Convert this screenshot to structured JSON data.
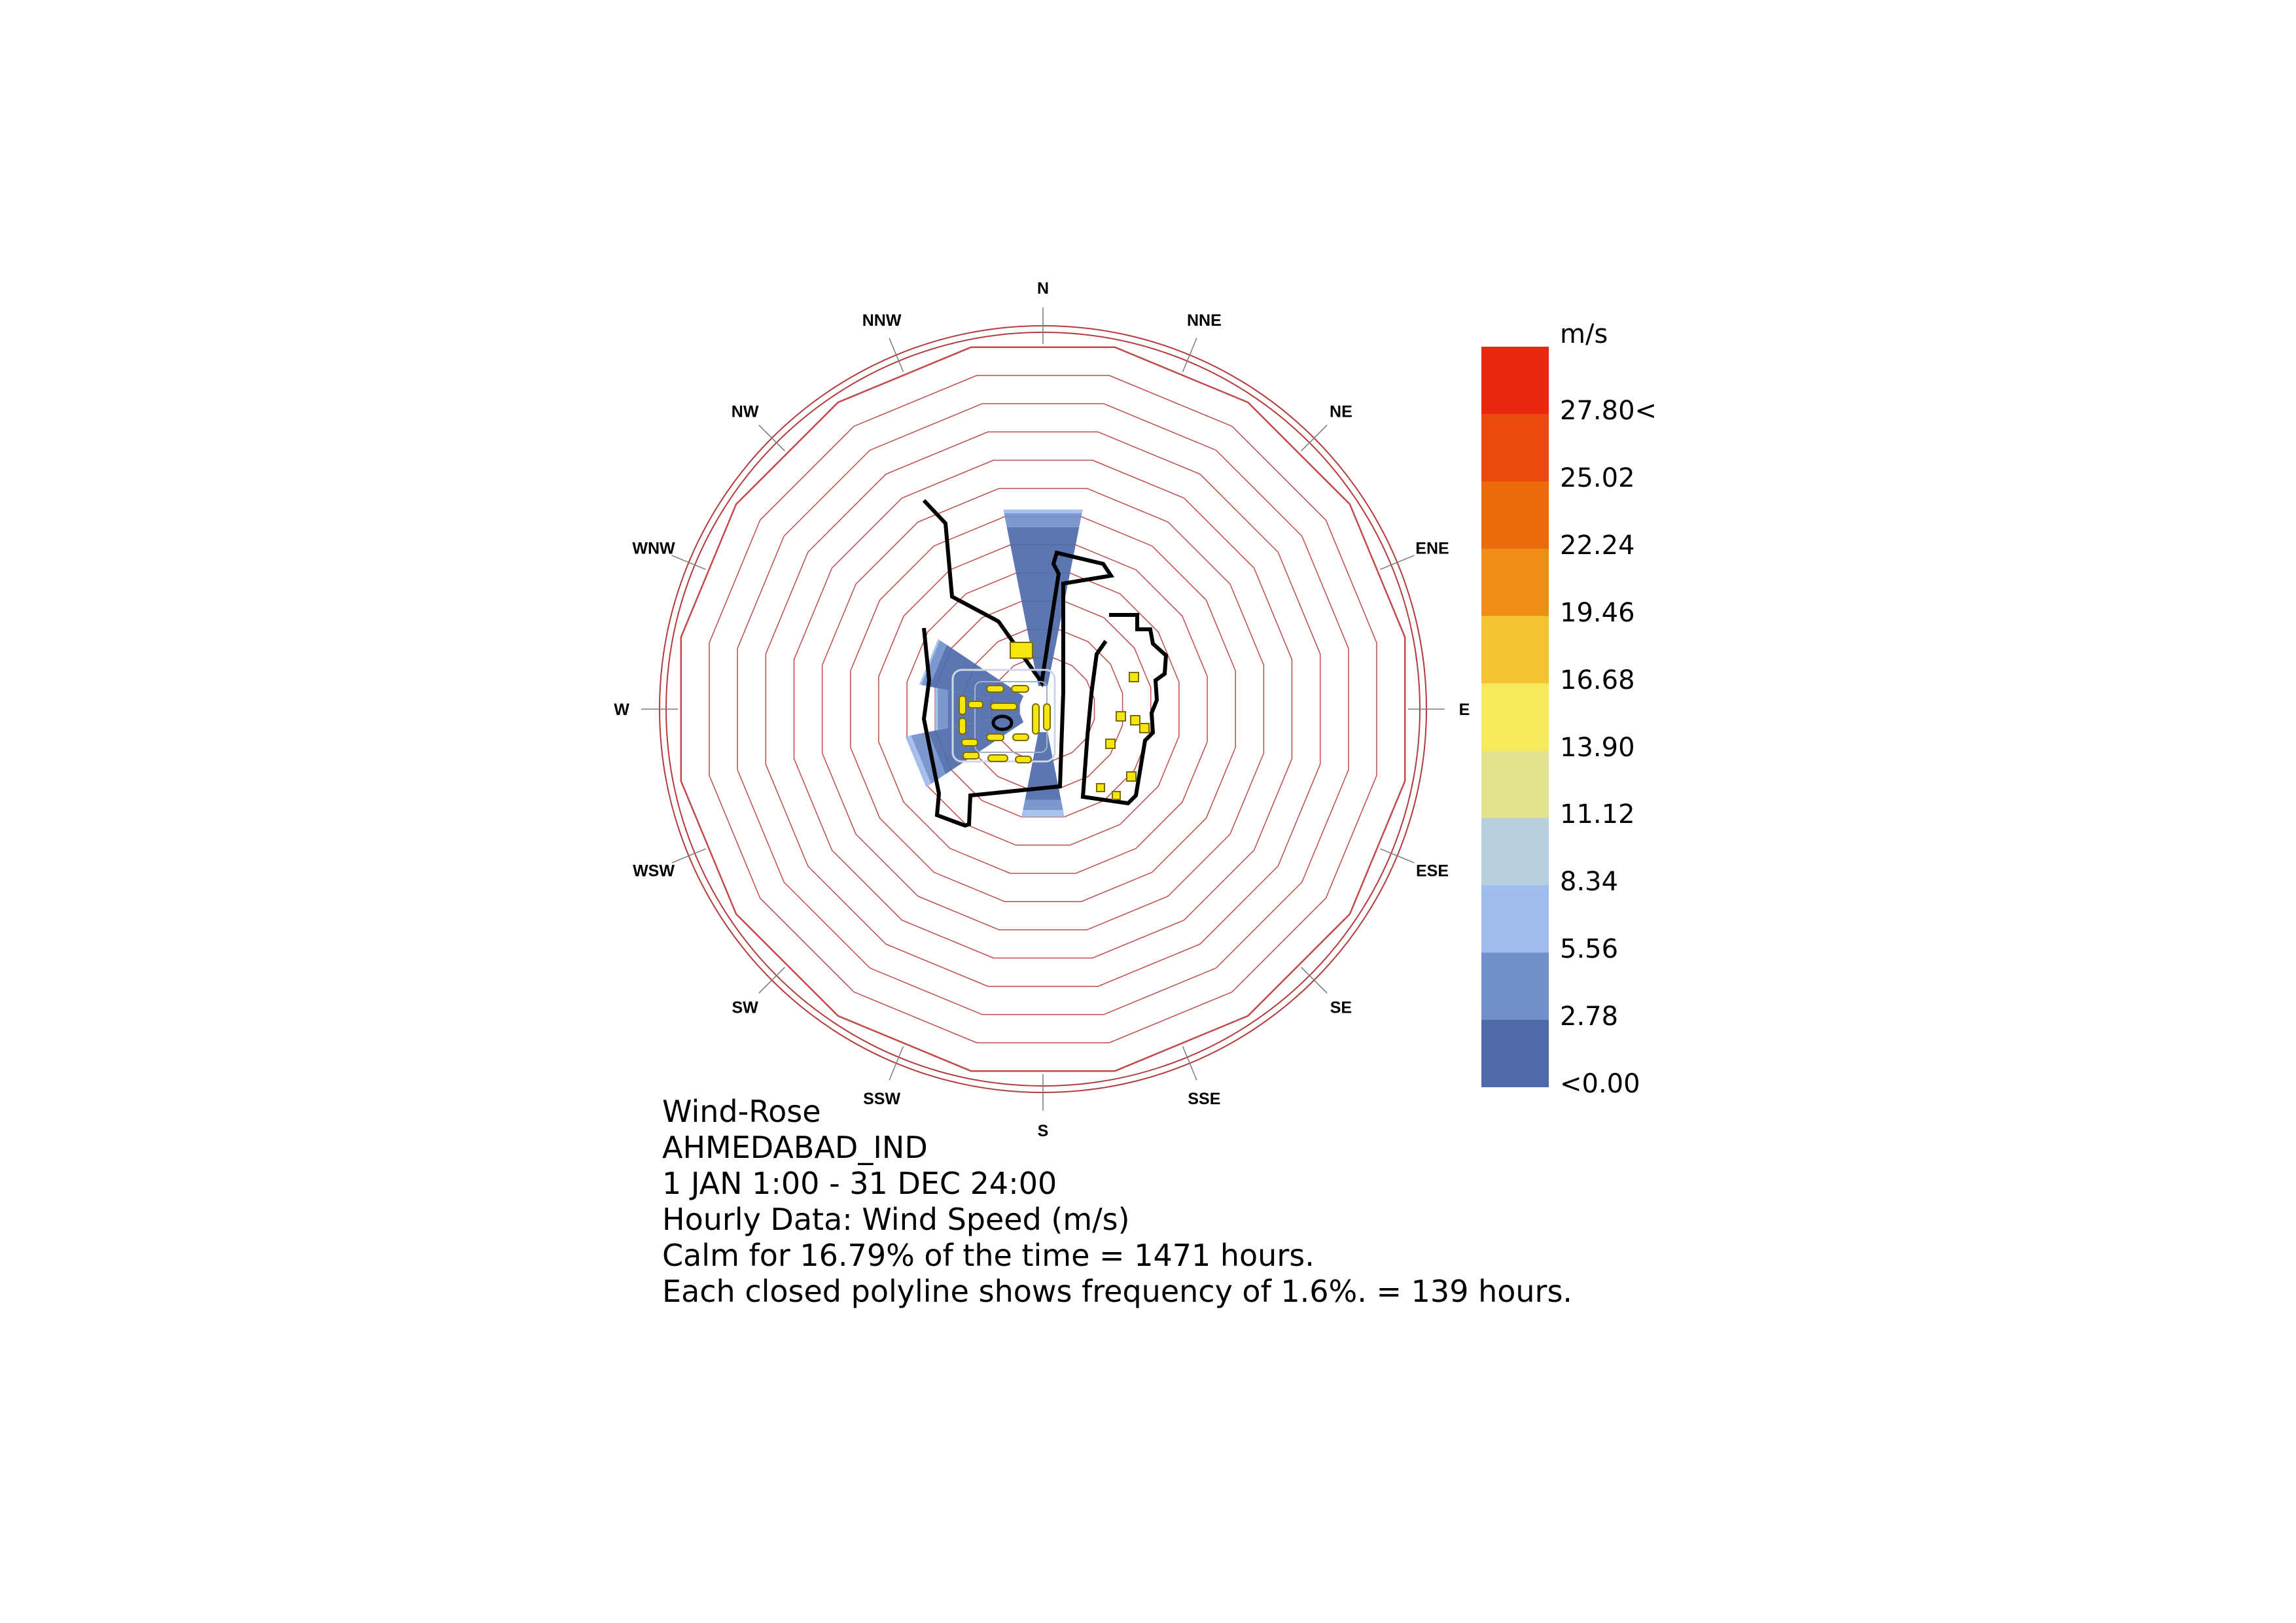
{
  "chart_data": {
    "type": "wind-rose",
    "directions": [
      "N",
      "NNE",
      "NE",
      "ENE",
      "E",
      "ESE",
      "SE",
      "SSE",
      "S",
      "SSW",
      "SW",
      "WSW",
      "W",
      "WNW",
      "NW",
      "NNW"
    ],
    "unit": "m/s",
    "frequency_per_ring_percent": 1.6,
    "frequency_per_ring_hours": 139,
    "ring_count": 12,
    "frequency_percent": [
      10.0,
      0,
      0,
      0,
      0,
      0,
      0,
      0,
      4.8,
      0,
      0,
      6.5,
      4.8,
      5.7,
      0,
      0
    ],
    "speed_band_fraction": [
      [
        0.9,
        0.08,
        0.02
      ],
      [
        0,
        0,
        0
      ],
      [
        0,
        0,
        0
      ],
      [
        0,
        0,
        0
      ],
      [
        0,
        0,
        0
      ],
      [
        0,
        0,
        0
      ],
      [
        0,
        0,
        0
      ],
      [
        0,
        0,
        0
      ],
      [
        0.8,
        0.12,
        0.08
      ],
      [
        0,
        0,
        0
      ],
      [
        0,
        0,
        0
      ],
      [
        0.8,
        0.15,
        0.05
      ],
      [
        0.85,
        0.12,
        0.03
      ],
      [
        0.9,
        0.08,
        0.02
      ],
      [
        0,
        0,
        0
      ],
      [
        0,
        0,
        0
      ]
    ],
    "legend": {
      "title": "m/s",
      "labels": [
        "27.80<",
        "25.02",
        "22.24",
        "19.46",
        "16.68",
        "13.90",
        "11.12",
        "8.34",
        "5.56",
        "2.78",
        "<0.00"
      ],
      "colors": [
        "#e8290f",
        "#ea4a0c",
        "#eb6b0c",
        "#ef8d15",
        "#f5c233",
        "#f8e85b",
        "#e1e38e",
        "#b8cfdf",
        "#a1bdef",
        "#7190ca",
        "#4e6aaa"
      ]
    }
  },
  "caption": {
    "line1": "Wind-Rose",
    "line2": "AHMEDABAD_IND",
    "line3": "1 JAN 1:00 - 31 DEC 24:00",
    "line4": "Hourly Data: Wind Speed (m/s)",
    "line5": "Calm for 16.79% of the time = 1471 hours.",
    "line6": "Each closed polyline shows frequency of 1.6%. = 139 hours."
  },
  "colors": {
    "ring": "#c24a4a",
    "outer_ring": "#b33b3b",
    "overlay_line": "#000000",
    "overlay_yellow": "#f5e60e"
  },
  "overlay": {
    "description_icon": "site-plan-overlay"
  }
}
